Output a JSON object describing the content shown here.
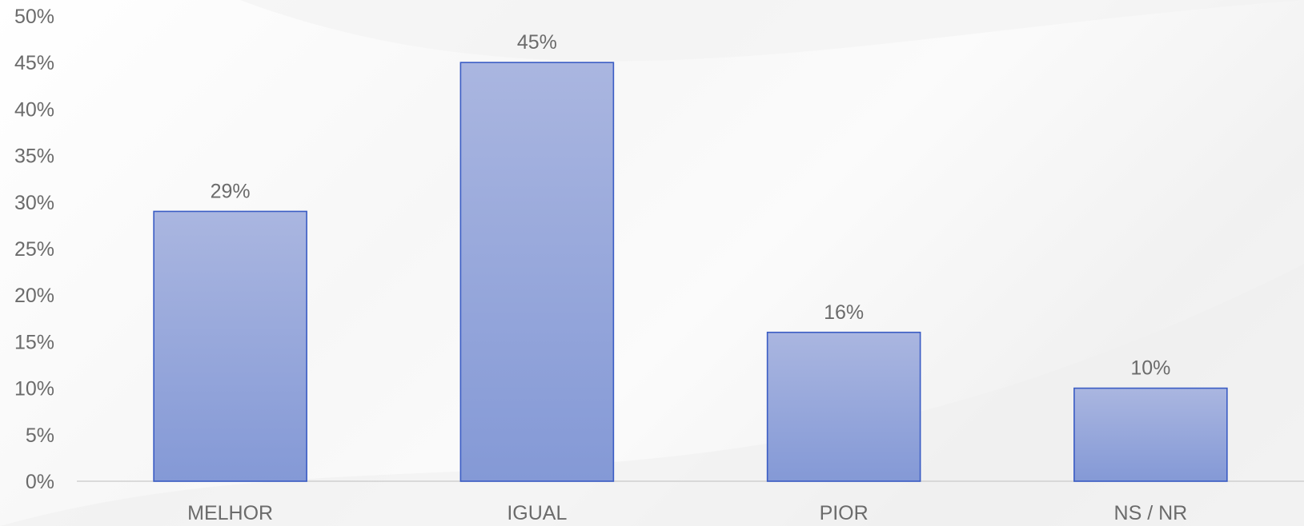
{
  "chart_data": {
    "type": "bar",
    "categories": [
      "MELHOR",
      "IGUAL",
      "PIOR",
      "NS / NR"
    ],
    "values": [
      29,
      45,
      16,
      10
    ],
    "data_labels": [
      "29%",
      "45%",
      "16%",
      "10%"
    ],
    "y_ticks": [
      "0%",
      "5%",
      "10%",
      "15%",
      "20%",
      "25%",
      "30%",
      "35%",
      "40%",
      "45%",
      "50%"
    ],
    "ylim": [
      0,
      50
    ],
    "grid": false,
    "legend": "none",
    "colors": {
      "bar_top": "#aab6e0",
      "bar_bottom": "#8499d6",
      "bar_stroke": "#3a5cc4",
      "axis": "#d0d0d0",
      "text": "#6b6b6b"
    }
  }
}
